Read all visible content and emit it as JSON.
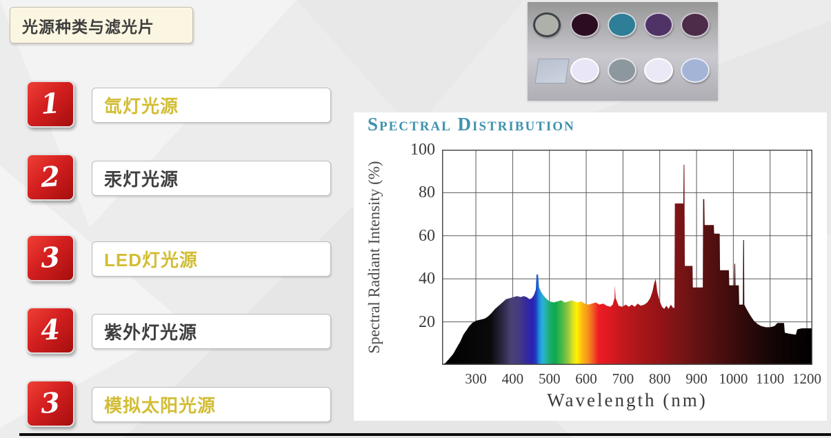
{
  "slide": {
    "title": "光源种类与滤光片",
    "accent_red": "#c41414",
    "items": [
      {
        "number": "1",
        "label": "氙灯光源",
        "color": "#d2bd34"
      },
      {
        "number": "2",
        "label": "汞灯光源",
        "color": "#3f3f3f"
      },
      {
        "number": "3",
        "label": "LED灯光源",
        "color": "#d2bd34"
      },
      {
        "number": "4",
        "label": "紫外灯光源",
        "color": "#3f3f3f"
      },
      {
        "number": "3",
        "label": "模拟太阳光源",
        "color": "#d2bd34"
      }
    ]
  },
  "filters_panel": {
    "top_row": [
      {
        "shape": "circle",
        "color": "#aeb1aa",
        "rim": "#3e4348"
      },
      {
        "shape": "circle",
        "color": "#2a0e20",
        "rim": "#cfc6d2"
      },
      {
        "shape": "circle",
        "color": "#2d7e96",
        "rim": "#d4dade"
      },
      {
        "shape": "circle",
        "color": "#4f3366",
        "rim": "#cfc6d8"
      },
      {
        "shape": "circle",
        "color": "#4d2c49",
        "rim": "#d0c8d2"
      }
    ],
    "bottom_row": [
      {
        "shape": "square",
        "color": "#b9c0cf",
        "rim": "#9aa2b2"
      },
      {
        "shape": "circle",
        "color": "#e9e6f7",
        "rim": "#ffffff"
      },
      {
        "shape": "circle",
        "color": "#8d979e",
        "rim": "#e2e6ea"
      },
      {
        "shape": "circle",
        "color": "#ece9f6",
        "rim": "#ffffff"
      },
      {
        "shape": "circle",
        "color": "#a3b4d7",
        "rim": "#e6ebf5"
      }
    ]
  },
  "chart_data": {
    "type": "area",
    "title": "Spectral Distribution",
    "title_color": "#3e92ae",
    "xlabel": "Wavelength (nm)",
    "ylabel": "Spectral Radiant Intensity (%)",
    "xlim": [
      208,
      1215
    ],
    "ylim": [
      0,
      100
    ],
    "x_ticks": [
      300,
      400,
      500,
      600,
      700,
      800,
      900,
      1000,
      1100,
      1200
    ],
    "y_ticks": [
      20,
      40,
      60,
      80,
      100
    ],
    "grid": true,
    "envelope_nm_pct": [
      [
        208,
        0
      ],
      [
        218,
        1
      ],
      [
        228,
        3
      ],
      [
        238,
        5
      ],
      [
        248,
        8
      ],
      [
        258,
        11
      ],
      [
        266,
        14
      ],
      [
        274,
        16
      ],
      [
        282,
        18
      ],
      [
        290,
        19.5
      ],
      [
        300,
        20.5
      ],
      [
        312,
        21
      ],
      [
        324,
        21.5
      ],
      [
        333,
        22.5
      ],
      [
        342,
        24
      ],
      [
        352,
        26
      ],
      [
        362,
        27.5
      ],
      [
        372,
        29
      ],
      [
        382,
        30.5
      ],
      [
        392,
        31
      ],
      [
        402,
        31.5
      ],
      [
        412,
        32
      ],
      [
        422,
        31.5
      ],
      [
        430,
        32
      ],
      [
        438,
        31.5
      ],
      [
        446,
        30.5
      ],
      [
        452,
        31
      ],
      [
        458,
        32.5
      ],
      [
        463,
        35
      ],
      [
        465,
        42
      ],
      [
        469,
        42
      ],
      [
        472,
        36
      ],
      [
        477,
        34
      ],
      [
        483,
        32.5
      ],
      [
        490,
        31
      ],
      [
        500,
        29.5
      ],
      [
        512,
        29
      ],
      [
        522,
        29.5
      ],
      [
        532,
        30
      ],
      [
        542,
        29
      ],
      [
        552,
        29.5
      ],
      [
        560,
        30
      ],
      [
        568,
        29.5
      ],
      [
        576,
        29
      ],
      [
        586,
        29.5
      ],
      [
        596,
        28.5
      ],
      [
        606,
        28
      ],
      [
        616,
        28.5
      ],
      [
        626,
        29
      ],
      [
        636,
        28
      ],
      [
        646,
        28.5
      ],
      [
        656,
        27.5
      ],
      [
        666,
        27
      ],
      [
        672,
        28
      ],
      [
        677,
        31
      ],
      [
        678,
        37
      ],
      [
        680,
        31
      ],
      [
        688,
        27.5
      ],
      [
        698,
        27
      ],
      [
        708,
        28
      ],
      [
        716,
        27
      ],
      [
        724,
        28
      ],
      [
        732,
        27
      ],
      [
        740,
        28.5
      ],
      [
        748,
        27.5
      ],
      [
        758,
        28
      ],
      [
        766,
        29
      ],
      [
        774,
        31
      ],
      [
        780,
        34
      ],
      [
        785,
        38
      ],
      [
        789,
        40
      ],
      [
        793,
        34
      ],
      [
        799,
        30
      ],
      [
        806,
        27
      ],
      [
        812,
        26
      ],
      [
        818,
        27.5
      ],
      [
        824,
        26
      ],
      [
        830,
        28
      ],
      [
        836,
        26.5
      ],
      [
        840,
        26.5
      ],
      [
        841,
        75
      ],
      [
        864,
        75
      ],
      [
        865,
        93
      ],
      [
        867,
        93
      ],
      [
        868,
        46
      ],
      [
        889,
        46
      ],
      [
        890,
        36
      ],
      [
        917,
        36
      ],
      [
        918,
        77
      ],
      [
        921,
        77
      ],
      [
        922,
        65
      ],
      [
        947,
        65
      ],
      [
        948,
        61
      ],
      [
        963,
        61
      ],
      [
        964,
        44
      ],
      [
        988,
        44
      ],
      [
        989,
        37
      ],
      [
        1002,
        37
      ],
      [
        1003,
        47
      ],
      [
        1005,
        47
      ],
      [
        1006,
        37
      ],
      [
        1015,
        37
      ],
      [
        1016,
        28
      ],
      [
        1026,
        28
      ],
      [
        1027,
        58
      ],
      [
        1029,
        58
      ],
      [
        1030,
        28
      ],
      [
        1036,
        26
      ],
      [
        1046,
        23
      ],
      [
        1056,
        20.5
      ],
      [
        1066,
        19
      ],
      [
        1076,
        18
      ],
      [
        1088,
        17.5
      ],
      [
        1100,
        17.5
      ],
      [
        1112,
        18
      ],
      [
        1120,
        19.5
      ],
      [
        1138,
        19.5
      ],
      [
        1140,
        15
      ],
      [
        1152,
        14.5
      ],
      [
        1170,
        14
      ],
      [
        1174,
        16.5
      ],
      [
        1186,
        17
      ],
      [
        1215,
        17
      ]
    ],
    "spectrum_gradient": [
      [
        208,
        "#000000"
      ],
      [
        340,
        "#0a0a0a"
      ],
      [
        375,
        "#2e2a4a"
      ],
      [
        395,
        "#4a4172"
      ],
      [
        418,
        "#443a82"
      ],
      [
        438,
        "#34289e"
      ],
      [
        455,
        "#2a22b4"
      ],
      [
        464,
        "#1f3fc4"
      ],
      [
        471,
        "#1e86d2"
      ],
      [
        480,
        "#28ade0"
      ],
      [
        489,
        "#27b4b0"
      ],
      [
        500,
        "#1ead74"
      ],
      [
        515,
        "#0ba94f"
      ],
      [
        533,
        "#46b748"
      ],
      [
        549,
        "#8cc63f"
      ],
      [
        563,
        "#d7df23"
      ],
      [
        574,
        "#fff200"
      ],
      [
        589,
        "#fdb913"
      ],
      [
        604,
        "#f7941d"
      ],
      [
        619,
        "#f15a24"
      ],
      [
        634,
        "#ed1c24"
      ],
      [
        658,
        "#e01a20"
      ],
      [
        700,
        "#c2181d"
      ],
      [
        750,
        "#a81618"
      ],
      [
        800,
        "#941417"
      ],
      [
        850,
        "#7c1416"
      ],
      [
        900,
        "#641213"
      ],
      [
        950,
        "#500f10"
      ],
      [
        1000,
        "#3c0c0c"
      ],
      [
        1060,
        "#250808"
      ],
      [
        1120,
        "#110404"
      ],
      [
        1215,
        "#000000"
      ]
    ]
  }
}
